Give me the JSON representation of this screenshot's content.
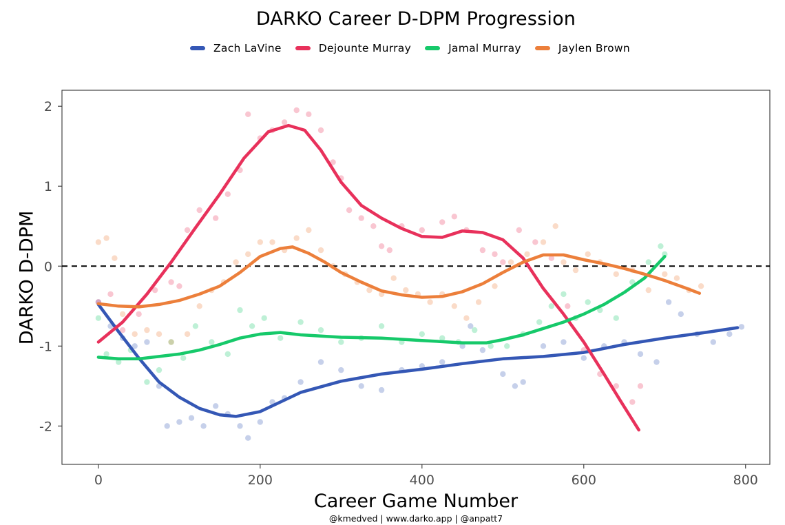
{
  "chart_data": {
    "type": "scatter",
    "title": "DARKO Career D-DPM Progression",
    "xlabel": "Career Game Number",
    "ylabel": "DARKO D-DPM",
    "caption": "@kmedved | www.darko.app | @anpatt7",
    "xlim": [
      -45,
      830
    ],
    "ylim": [
      -2.48,
      2.2
    ],
    "x_ticks": [
      0,
      200,
      400,
      600,
      800
    ],
    "x_tick_labels": [
      "0",
      "200",
      "400",
      "600",
      "800"
    ],
    "y_ticks": [
      -2,
      -1,
      0,
      1,
      2
    ],
    "y_tick_labels": [
      "-2",
      "-1",
      "0",
      "1",
      "2"
    ],
    "reference_line": {
      "y": 0,
      "style": "dashed"
    },
    "grid": false,
    "legend_position": "top",
    "series": [
      {
        "name": "Zach LaVine",
        "color": "#3457b5",
        "trend": [
          [
            0,
            -0.48
          ],
          [
            25,
            -0.82
          ],
          [
            50,
            -1.15
          ],
          [
            75,
            -1.45
          ],
          [
            100,
            -1.64
          ],
          [
            125,
            -1.78
          ],
          [
            150,
            -1.86
          ],
          [
            170,
            -1.88
          ],
          [
            200,
            -1.82
          ],
          [
            225,
            -1.7
          ],
          [
            250,
            -1.58
          ],
          [
            300,
            -1.44
          ],
          [
            350,
            -1.35
          ],
          [
            400,
            -1.29
          ],
          [
            450,
            -1.22
          ],
          [
            500,
            -1.16
          ],
          [
            550,
            -1.13
          ],
          [
            600,
            -1.08
          ],
          [
            650,
            -0.98
          ],
          [
            700,
            -0.9
          ],
          [
            750,
            -0.83
          ],
          [
            790,
            -0.77
          ]
        ],
        "points": [
          [
            0,
            -0.45
          ],
          [
            15,
            -0.75
          ],
          [
            30,
            -0.9
          ],
          [
            45,
            -1.0
          ],
          [
            60,
            -0.95
          ],
          [
            75,
            -1.5
          ],
          [
            85,
            -2.0
          ],
          [
            100,
            -1.95
          ],
          [
            115,
            -1.9
          ],
          [
            130,
            -2.0
          ],
          [
            145,
            -1.75
          ],
          [
            160,
            -1.85
          ],
          [
            175,
            -2.0
          ],
          [
            185,
            -2.15
          ],
          [
            200,
            -1.95
          ],
          [
            215,
            -1.7
          ],
          [
            230,
            -1.65
          ],
          [
            250,
            -1.45
          ],
          [
            275,
            -1.2
          ],
          [
            300,
            -1.3
          ],
          [
            325,
            -1.5
          ],
          [
            350,
            -1.55
          ],
          [
            375,
            -1.3
          ],
          [
            400,
            -1.25
          ],
          [
            425,
            -1.2
          ],
          [
            450,
            -1.0
          ],
          [
            460,
            -0.75
          ],
          [
            475,
            -1.05
          ],
          [
            500,
            -1.35
          ],
          [
            515,
            -1.5
          ],
          [
            525,
            -1.45
          ],
          [
            550,
            -1.0
          ],
          [
            575,
            -0.95
          ],
          [
            600,
            -1.15
          ],
          [
            625,
            -1.0
          ],
          [
            650,
            -0.95
          ],
          [
            670,
            -1.1
          ],
          [
            690,
            -1.2
          ],
          [
            705,
            -0.45
          ],
          [
            720,
            -0.6
          ],
          [
            740,
            -0.85
          ],
          [
            760,
            -0.95
          ],
          [
            780,
            -0.85
          ],
          [
            795,
            -0.76
          ]
        ]
      },
      {
        "name": "Dejounte Murray",
        "color": "#e8315b",
        "trend": [
          [
            0,
            -0.95
          ],
          [
            30,
            -0.7
          ],
          [
            60,
            -0.35
          ],
          [
            90,
            0.05
          ],
          [
            120,
            0.48
          ],
          [
            150,
            0.9
          ],
          [
            180,
            1.35
          ],
          [
            210,
            1.68
          ],
          [
            235,
            1.76
          ],
          [
            255,
            1.7
          ],
          [
            275,
            1.45
          ],
          [
            300,
            1.05
          ],
          [
            325,
            0.76
          ],
          [
            350,
            0.6
          ],
          [
            375,
            0.47
          ],
          [
            400,
            0.37
          ],
          [
            425,
            0.36
          ],
          [
            450,
            0.44
          ],
          [
            475,
            0.42
          ],
          [
            500,
            0.33
          ],
          [
            525,
            0.1
          ],
          [
            550,
            -0.28
          ],
          [
            575,
            -0.6
          ],
          [
            600,
            -0.95
          ],
          [
            625,
            -1.35
          ],
          [
            645,
            -1.68
          ],
          [
            668,
            -2.05
          ]
        ],
        "points": [
          [
            0,
            -0.45
          ],
          [
            15,
            -0.35
          ],
          [
            30,
            -0.8
          ],
          [
            50,
            -0.6
          ],
          [
            70,
            -0.3
          ],
          [
            90,
            -0.2
          ],
          [
            100,
            -0.25
          ],
          [
            110,
            0.45
          ],
          [
            125,
            0.7
          ],
          [
            145,
            0.6
          ],
          [
            160,
            0.9
          ],
          [
            175,
            1.2
          ],
          [
            185,
            1.9
          ],
          [
            200,
            1.6
          ],
          [
            215,
            1.7
          ],
          [
            230,
            1.8
          ],
          [
            245,
            1.95
          ],
          [
            260,
            1.9
          ],
          [
            275,
            1.7
          ],
          [
            290,
            1.3
          ],
          [
            300,
            1.1
          ],
          [
            310,
            0.7
          ],
          [
            325,
            0.6
          ],
          [
            340,
            0.5
          ],
          [
            350,
            0.25
          ],
          [
            360,
            0.2
          ],
          [
            375,
            0.5
          ],
          [
            400,
            0.45
          ],
          [
            425,
            0.55
          ],
          [
            440,
            0.62
          ],
          [
            455,
            0.45
          ],
          [
            475,
            0.2
          ],
          [
            490,
            0.15
          ],
          [
            500,
            0.05
          ],
          [
            520,
            0.45
          ],
          [
            540,
            0.3
          ],
          [
            560,
            0.1
          ],
          [
            580,
            -0.5
          ],
          [
            600,
            -1.05
          ],
          [
            620,
            -1.35
          ],
          [
            640,
            -1.5
          ],
          [
            660,
            -1.7
          ],
          [
            670,
            -1.5
          ]
        ]
      },
      {
        "name": "Jamal Murray",
        "color": "#16c96a",
        "trend": [
          [
            0,
            -1.14
          ],
          [
            25,
            -1.16
          ],
          [
            50,
            -1.16
          ],
          [
            75,
            -1.13
          ],
          [
            100,
            -1.1
          ],
          [
            125,
            -1.05
          ],
          [
            150,
            -0.98
          ],
          [
            175,
            -0.9
          ],
          [
            200,
            -0.85
          ],
          [
            225,
            -0.83
          ],
          [
            250,
            -0.86
          ],
          [
            300,
            -0.89
          ],
          [
            350,
            -0.9
          ],
          [
            400,
            -0.93
          ],
          [
            450,
            -0.96
          ],
          [
            480,
            -0.96
          ],
          [
            500,
            -0.92
          ],
          [
            525,
            -0.86
          ],
          [
            550,
            -0.78
          ],
          [
            575,
            -0.7
          ],
          [
            600,
            -0.6
          ],
          [
            625,
            -0.48
          ],
          [
            650,
            -0.33
          ],
          [
            675,
            -0.15
          ],
          [
            700,
            0.12
          ]
        ],
        "points": [
          [
            0,
            -0.65
          ],
          [
            10,
            -1.1
          ],
          [
            25,
            -1.2
          ],
          [
            40,
            -1.05
          ],
          [
            60,
            -1.45
          ],
          [
            75,
            -1.3
          ],
          [
            90,
            -0.95
          ],
          [
            105,
            -1.15
          ],
          [
            120,
            -0.75
          ],
          [
            140,
            -0.95
          ],
          [
            160,
            -1.1
          ],
          [
            175,
            -0.55
          ],
          [
            190,
            -0.75
          ],
          [
            205,
            -0.65
          ],
          [
            225,
            -0.9
          ],
          [
            250,
            -0.7
          ],
          [
            275,
            -0.8
          ],
          [
            300,
            -0.95
          ],
          [
            325,
            -0.9
          ],
          [
            350,
            -0.75
          ],
          [
            375,
            -0.95
          ],
          [
            400,
            -0.85
          ],
          [
            425,
            -0.9
          ],
          [
            445,
            -0.95
          ],
          [
            465,
            -0.8
          ],
          [
            485,
            -1.0
          ],
          [
            505,
            -1.0
          ],
          [
            525,
            -0.85
          ],
          [
            545,
            -0.7
          ],
          [
            560,
            -0.5
          ],
          [
            575,
            -0.35
          ],
          [
            590,
            -0.65
          ],
          [
            605,
            -0.45
          ],
          [
            620,
            -0.55
          ],
          [
            640,
            -0.65
          ],
          [
            660,
            -0.2
          ],
          [
            680,
            0.05
          ],
          [
            695,
            0.25
          ],
          [
            700,
            0.15
          ]
        ]
      },
      {
        "name": "Jaylen Brown",
        "color": "#ec7f3b",
        "trend": [
          [
            0,
            -0.47
          ],
          [
            25,
            -0.5
          ],
          [
            50,
            -0.51
          ],
          [
            75,
            -0.48
          ],
          [
            100,
            -0.43
          ],
          [
            125,
            -0.35
          ],
          [
            150,
            -0.25
          ],
          [
            175,
            -0.08
          ],
          [
            200,
            0.12
          ],
          [
            225,
            0.22
          ],
          [
            240,
            0.24
          ],
          [
            260,
            0.16
          ],
          [
            280,
            0.05
          ],
          [
            300,
            -0.08
          ],
          [
            325,
            -0.2
          ],
          [
            350,
            -0.31
          ],
          [
            375,
            -0.36
          ],
          [
            400,
            -0.39
          ],
          [
            425,
            -0.38
          ],
          [
            450,
            -0.32
          ],
          [
            475,
            -0.22
          ],
          [
            500,
            -0.08
          ],
          [
            525,
            0.05
          ],
          [
            550,
            0.14
          ],
          [
            575,
            0.14
          ],
          [
            600,
            0.08
          ],
          [
            625,
            0.03
          ],
          [
            650,
            -0.03
          ],
          [
            675,
            -0.1
          ],
          [
            700,
            -0.18
          ],
          [
            725,
            -0.27
          ],
          [
            743,
            -0.34
          ]
        ],
        "points": [
          [
            0,
            0.3
          ],
          [
            10,
            0.35
          ],
          [
            20,
            0.1
          ],
          [
            30,
            -0.6
          ],
          [
            45,
            -0.85
          ],
          [
            60,
            -0.8
          ],
          [
            75,
            -0.85
          ],
          [
            90,
            -0.95
          ],
          [
            110,
            -0.85
          ],
          [
            125,
            -0.5
          ],
          [
            140,
            -0.3
          ],
          [
            155,
            -0.2
          ],
          [
            170,
            0.05
          ],
          [
            185,
            0.15
          ],
          [
            200,
            0.3
          ],
          [
            215,
            0.3
          ],
          [
            230,
            0.2
          ],
          [
            245,
            0.35
          ],
          [
            260,
            0.45
          ],
          [
            275,
            0.2
          ],
          [
            290,
            0.0
          ],
          [
            305,
            -0.1
          ],
          [
            320,
            -0.2
          ],
          [
            335,
            -0.3
          ],
          [
            350,
            -0.35
          ],
          [
            365,
            -0.15
          ],
          [
            380,
            -0.3
          ],
          [
            395,
            -0.35
          ],
          [
            410,
            -0.45
          ],
          [
            425,
            -0.35
          ],
          [
            440,
            -0.5
          ],
          [
            455,
            -0.65
          ],
          [
            470,
            -0.45
          ],
          [
            490,
            -0.25
          ],
          [
            510,
            0.05
          ],
          [
            530,
            0.15
          ],
          [
            550,
            0.3
          ],
          [
            565,
            0.5
          ],
          [
            575,
            0.05
          ],
          [
            590,
            -0.05
          ],
          [
            605,
            0.15
          ],
          [
            620,
            0.05
          ],
          [
            640,
            -0.1
          ],
          [
            660,
            -0.05
          ],
          [
            680,
            -0.3
          ],
          [
            700,
            -0.1
          ],
          [
            715,
            -0.15
          ],
          [
            730,
            -0.3
          ],
          [
            745,
            -0.25
          ]
        ]
      }
    ]
  }
}
